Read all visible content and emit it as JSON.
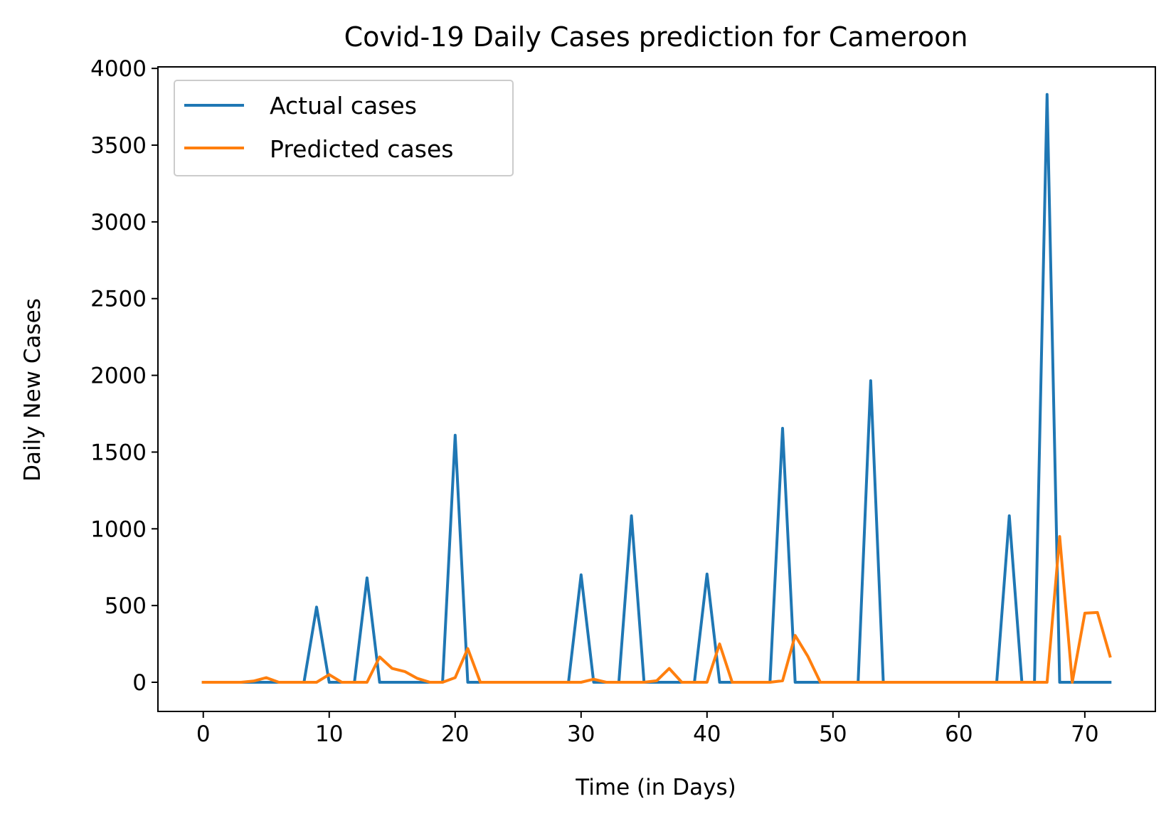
{
  "chart_data": {
    "type": "line",
    "title": "Covid-19 Daily Cases prediction for Cameroon",
    "xlabel": "Time (in Days)",
    "ylabel": "Daily New Cases",
    "xlim": [
      -3.6,
      75.6
    ],
    "ylim": [
      -190,
      4010
    ],
    "xticks": [
      0,
      10,
      20,
      30,
      40,
      50,
      60,
      70
    ],
    "yticks": [
      0,
      500,
      1000,
      1500,
      2000,
      2500,
      3000,
      3500,
      4000
    ],
    "grid": false,
    "legend_position": "top-left",
    "x": [
      0,
      1,
      2,
      3,
      4,
      5,
      6,
      7,
      8,
      9,
      10,
      11,
      12,
      13,
      14,
      15,
      16,
      17,
      18,
      19,
      20,
      21,
      22,
      23,
      24,
      25,
      26,
      27,
      28,
      29,
      30,
      31,
      32,
      33,
      34,
      35,
      36,
      37,
      38,
      39,
      40,
      41,
      42,
      43,
      44,
      45,
      46,
      47,
      48,
      49,
      50,
      51,
      52,
      53,
      54,
      55,
      56,
      57,
      58,
      59,
      60,
      61,
      62,
      63,
      64,
      65,
      66,
      67,
      68,
      69,
      70,
      71,
      72
    ],
    "series": [
      {
        "name": "Actual cases",
        "color": "#1f77b4",
        "values": [
          0,
          0,
          0,
          0,
          0,
          0,
          0,
          0,
          0,
          490,
          0,
          0,
          0,
          680,
          0,
          0,
          0,
          0,
          0,
          0,
          1610,
          0,
          0,
          0,
          0,
          0,
          0,
          0,
          0,
          0,
          700,
          0,
          0,
          0,
          1085,
          0,
          0,
          0,
          0,
          0,
          705,
          0,
          0,
          0,
          0,
          0,
          1655,
          0,
          0,
          0,
          0,
          0,
          0,
          1965,
          0,
          0,
          0,
          0,
          0,
          0,
          0,
          0,
          0,
          0,
          1085,
          0,
          0,
          3830,
          0,
          0,
          0,
          0,
          0
        ]
      },
      {
        "name": "Predicted cases",
        "color": "#ff7f0e",
        "values": [
          0,
          0,
          0,
          0,
          8,
          30,
          0,
          0,
          0,
          0,
          50,
          0,
          0,
          0,
          165,
          90,
          70,
          25,
          0,
          0,
          30,
          220,
          0,
          0,
          0,
          0,
          0,
          0,
          0,
          0,
          0,
          20,
          0,
          0,
          0,
          0,
          10,
          90,
          0,
          0,
          0,
          250,
          0,
          0,
          0,
          0,
          10,
          305,
          170,
          0,
          0,
          0,
          0,
          0,
          0,
          0,
          0,
          0,
          0,
          0,
          0,
          0,
          0,
          0,
          0,
          0,
          0,
          0,
          950,
          0,
          450,
          455,
          170
        ]
      }
    ]
  }
}
